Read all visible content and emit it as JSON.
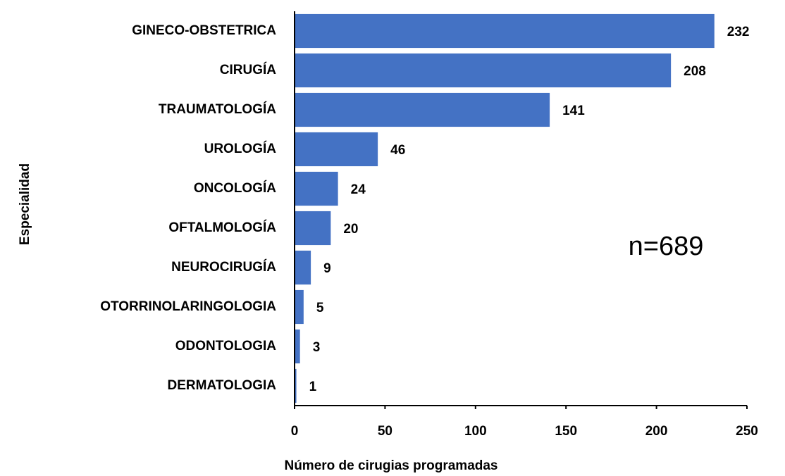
{
  "chart_data": {
    "type": "bar",
    "orientation": "horizontal",
    "categories": [
      "GINECO-OBSTETRICA",
      "CIRUGÍA",
      "TRAUMATOLOGÍA",
      "UROLOGÍA",
      "ONCOLOGÍA",
      "OFTALMOLOGÍA",
      "NEUROCIRUGÍA",
      "OTORRINOLARINGOLOGIA",
      "ODONTOLOGIA",
      "DERMATOLOGIA"
    ],
    "values": [
      232,
      208,
      141,
      46,
      24,
      20,
      9,
      5,
      3,
      1
    ],
    "color": "#4472c4",
    "xlim": [
      0,
      250
    ],
    "xticks": [
      0,
      50,
      100,
      150,
      200,
      250
    ],
    "x_label": "Número de cirugias programadas",
    "y_label": "Especialidad",
    "annotation": "n=689"
  }
}
